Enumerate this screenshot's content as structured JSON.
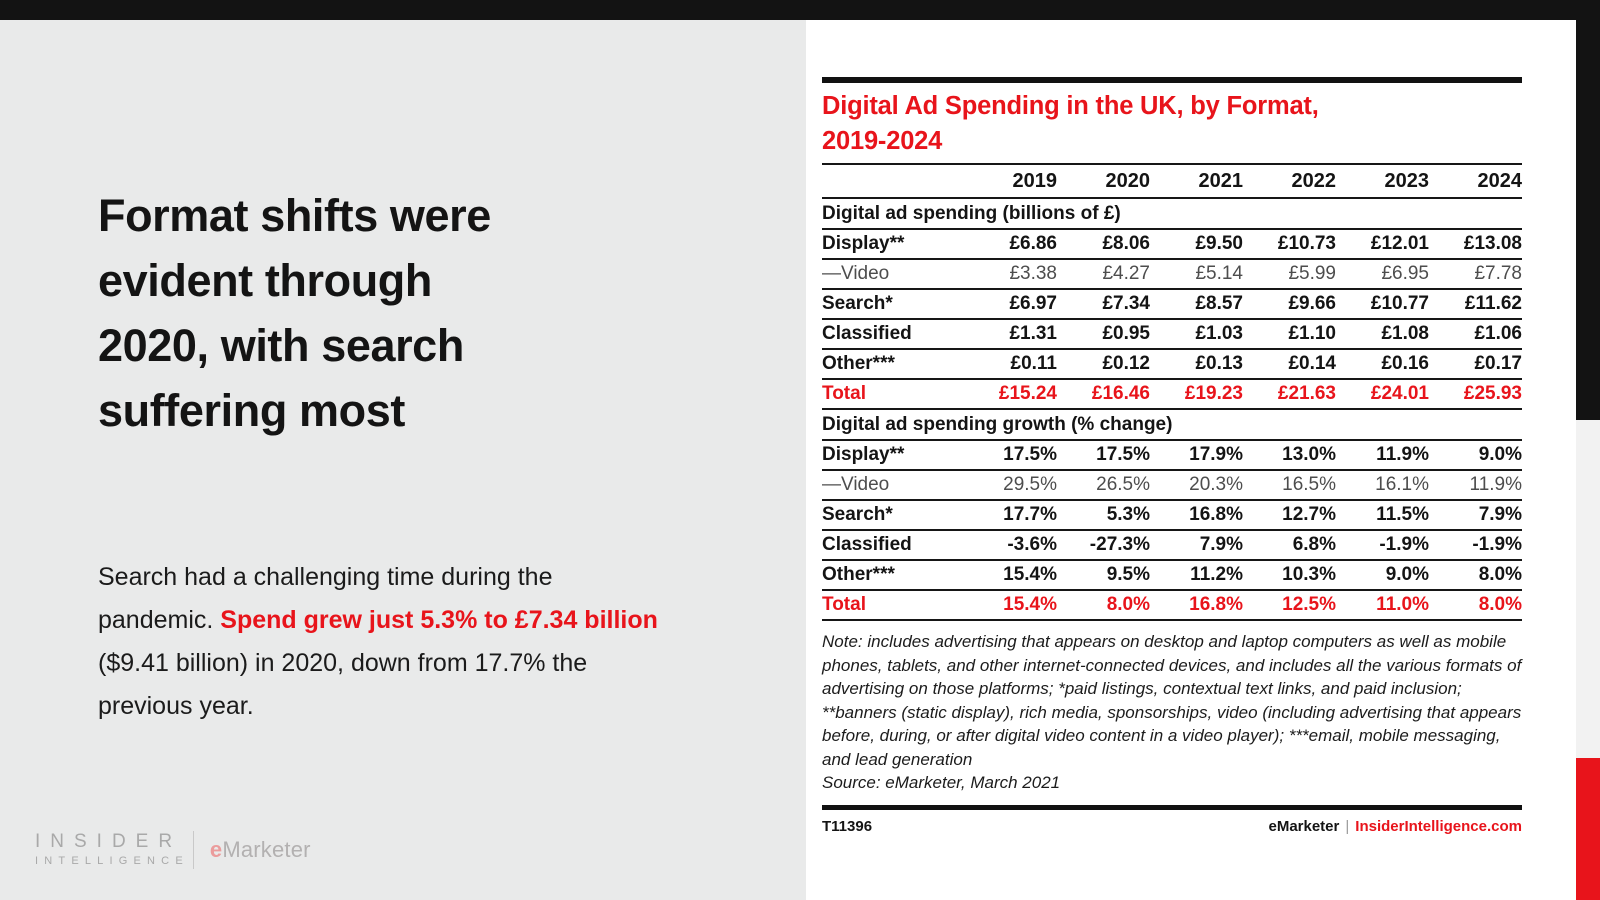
{
  "theme": {
    "accent_red": "#e8141b",
    "top_bar_color": "#131313",
    "left_background": "#e9eaea",
    "card_background": "#ffffff"
  },
  "left_panel": {
    "headline_lines": [
      "Format shifts were",
      "evident through",
      "2020, with search",
      "suffering most"
    ],
    "body": {
      "pre": "Search had a challenging time during the pandemic. ",
      "highlight": "Spend grew just 5.3% to £7.34 billion",
      "post": " ($9.41 billion) in 2020, down from 17.7% the previous year."
    },
    "logo": {
      "insider": "INSIDER",
      "intelligence": "INTELLIGENCE",
      "emarketer_e": "e",
      "emarketer_rest": "Marketer"
    }
  },
  "chart": {
    "title_lines": [
      "Digital Ad Spending in the UK, by Format,",
      "2019-2024"
    ],
    "years": [
      "2019",
      "2020",
      "2021",
      "2022",
      "2023",
      "2024"
    ],
    "sections": [
      {
        "header": "Digital ad spending (billions of £)",
        "rows": [
          {
            "label": "Display**",
            "style": "bold",
            "values": [
              "£6.86",
              "£8.06",
              "£9.50",
              "£10.73",
              "£12.01",
              "£13.08"
            ]
          },
          {
            "label": "—Video",
            "style": "sub",
            "values": [
              "£3.38",
              "£4.27",
              "£5.14",
              "£5.99",
              "£6.95",
              "£7.78"
            ]
          },
          {
            "label": "Search*",
            "style": "bold",
            "values": [
              "£6.97",
              "£7.34",
              "£8.57",
              "£9.66",
              "£10.77",
              "£11.62"
            ]
          },
          {
            "label": "Classified",
            "style": "bold",
            "values": [
              "£1.31",
              "£0.95",
              "£1.03",
              "£1.10",
              "£1.08",
              "£1.06"
            ]
          },
          {
            "label": "Other***",
            "style": "bold",
            "values": [
              "£0.11",
              "£0.12",
              "£0.13",
              "£0.14",
              "£0.16",
              "£0.17"
            ]
          },
          {
            "label": "Total",
            "style": "total",
            "values": [
              "£15.24",
              "£16.46",
              "£19.23",
              "£21.63",
              "£24.01",
              "£25.93"
            ]
          }
        ]
      },
      {
        "header": "Digital ad spending growth (% change)",
        "rows": [
          {
            "label": "Display**",
            "style": "bold",
            "values": [
              "17.5%",
              "17.5%",
              "17.9%",
              "13.0%",
              "11.9%",
              "9.0%"
            ]
          },
          {
            "label": "—Video",
            "style": "sub",
            "values": [
              "29.5%",
              "26.5%",
              "20.3%",
              "16.5%",
              "16.1%",
              "11.9%"
            ]
          },
          {
            "label": "Search*",
            "style": "bold",
            "values": [
              "17.7%",
              "5.3%",
              "16.8%",
              "12.7%",
              "11.5%",
              "7.9%"
            ]
          },
          {
            "label": "Classified",
            "style": "bold",
            "values": [
              "-3.6%",
              "-27.3%",
              "7.9%",
              "6.8%",
              "-1.9%",
              "-1.9%"
            ]
          },
          {
            "label": "Other***",
            "style": "bold",
            "values": [
              "15.4%",
              "9.5%",
              "11.2%",
              "10.3%",
              "9.0%",
              "8.0%"
            ]
          },
          {
            "label": "Total",
            "style": "total",
            "values": [
              "15.4%",
              "8.0%",
              "16.8%",
              "12.5%",
              "11.0%",
              "8.0%"
            ]
          }
        ]
      }
    ],
    "note": "Note: includes advertising that appears on desktop and laptop computers as well as mobile phones, tablets, and other internet-connected devices, and includes all the various formats of advertising on those platforms; *paid listings, contextual text links, and paid inclusion; **banners (static display), rich media, sponsorships, video (including advertising that appears before, during, or after digital video content in a video player); ***email, mobile messaging, and lead generation",
    "source": "Source: eMarketer, March 2021",
    "footer": {
      "chart_id": "T11396",
      "brand": "eMarketer",
      "divider": "|",
      "site": "InsiderIntelligence.com"
    }
  },
  "chart_data": {
    "type": "table",
    "title": "Digital Ad Spending in the UK, by Format, 2019-2024",
    "categories": [
      2019,
      2020,
      2021,
      2022,
      2023,
      2024
    ],
    "sections": [
      {
        "name": "Digital ad spending (billions of £)",
        "unit": "billions of £",
        "series": [
          {
            "name": "Display**",
            "values": [
              6.86,
              8.06,
              9.5,
              10.73,
              12.01,
              13.08
            ]
          },
          {
            "name": "—Video",
            "values": [
              3.38,
              4.27,
              5.14,
              5.99,
              6.95,
              7.78
            ]
          },
          {
            "name": "Search*",
            "values": [
              6.97,
              7.34,
              8.57,
              9.66,
              10.77,
              11.62
            ]
          },
          {
            "name": "Classified",
            "values": [
              1.31,
              0.95,
              1.03,
              1.1,
              1.08,
              1.06
            ]
          },
          {
            "name": "Other***",
            "values": [
              0.11,
              0.12,
              0.13,
              0.14,
              0.16,
              0.17
            ]
          },
          {
            "name": "Total",
            "values": [
              15.24,
              16.46,
              19.23,
              21.63,
              24.01,
              25.93
            ]
          }
        ]
      },
      {
        "name": "Digital ad spending growth (% change)",
        "unit": "% change",
        "series": [
          {
            "name": "Display**",
            "values": [
              17.5,
              17.5,
              17.9,
              13.0,
              11.9,
              9.0
            ]
          },
          {
            "name": "—Video",
            "values": [
              29.5,
              26.5,
              20.3,
              16.5,
              16.1,
              11.9
            ]
          },
          {
            "name": "Search*",
            "values": [
              17.7,
              5.3,
              16.8,
              12.7,
              11.5,
              7.9
            ]
          },
          {
            "name": "Classified",
            "values": [
              -3.6,
              -27.3,
              7.9,
              6.8,
              -1.9,
              -1.9
            ]
          },
          {
            "name": "Other***",
            "values": [
              15.4,
              9.5,
              11.2,
              10.3,
              9.0,
              8.0
            ]
          },
          {
            "name": "Total",
            "values": [
              15.4,
              8.0,
              16.8,
              12.5,
              11.0,
              8.0
            ]
          }
        ]
      }
    ],
    "note": "includes advertising that appears on desktop and laptop computers as well as mobile phones, tablets, and other internet-connected devices, and includes all the various formats of advertising on those platforms; *paid listings, contextual text links, and paid inclusion; **banners (static display), rich media, sponsorships, video (including advertising that appears before, during, or after digital video content in a video player); ***email, mobile messaging, and lead generation",
    "source": "eMarketer, March 2021"
  }
}
